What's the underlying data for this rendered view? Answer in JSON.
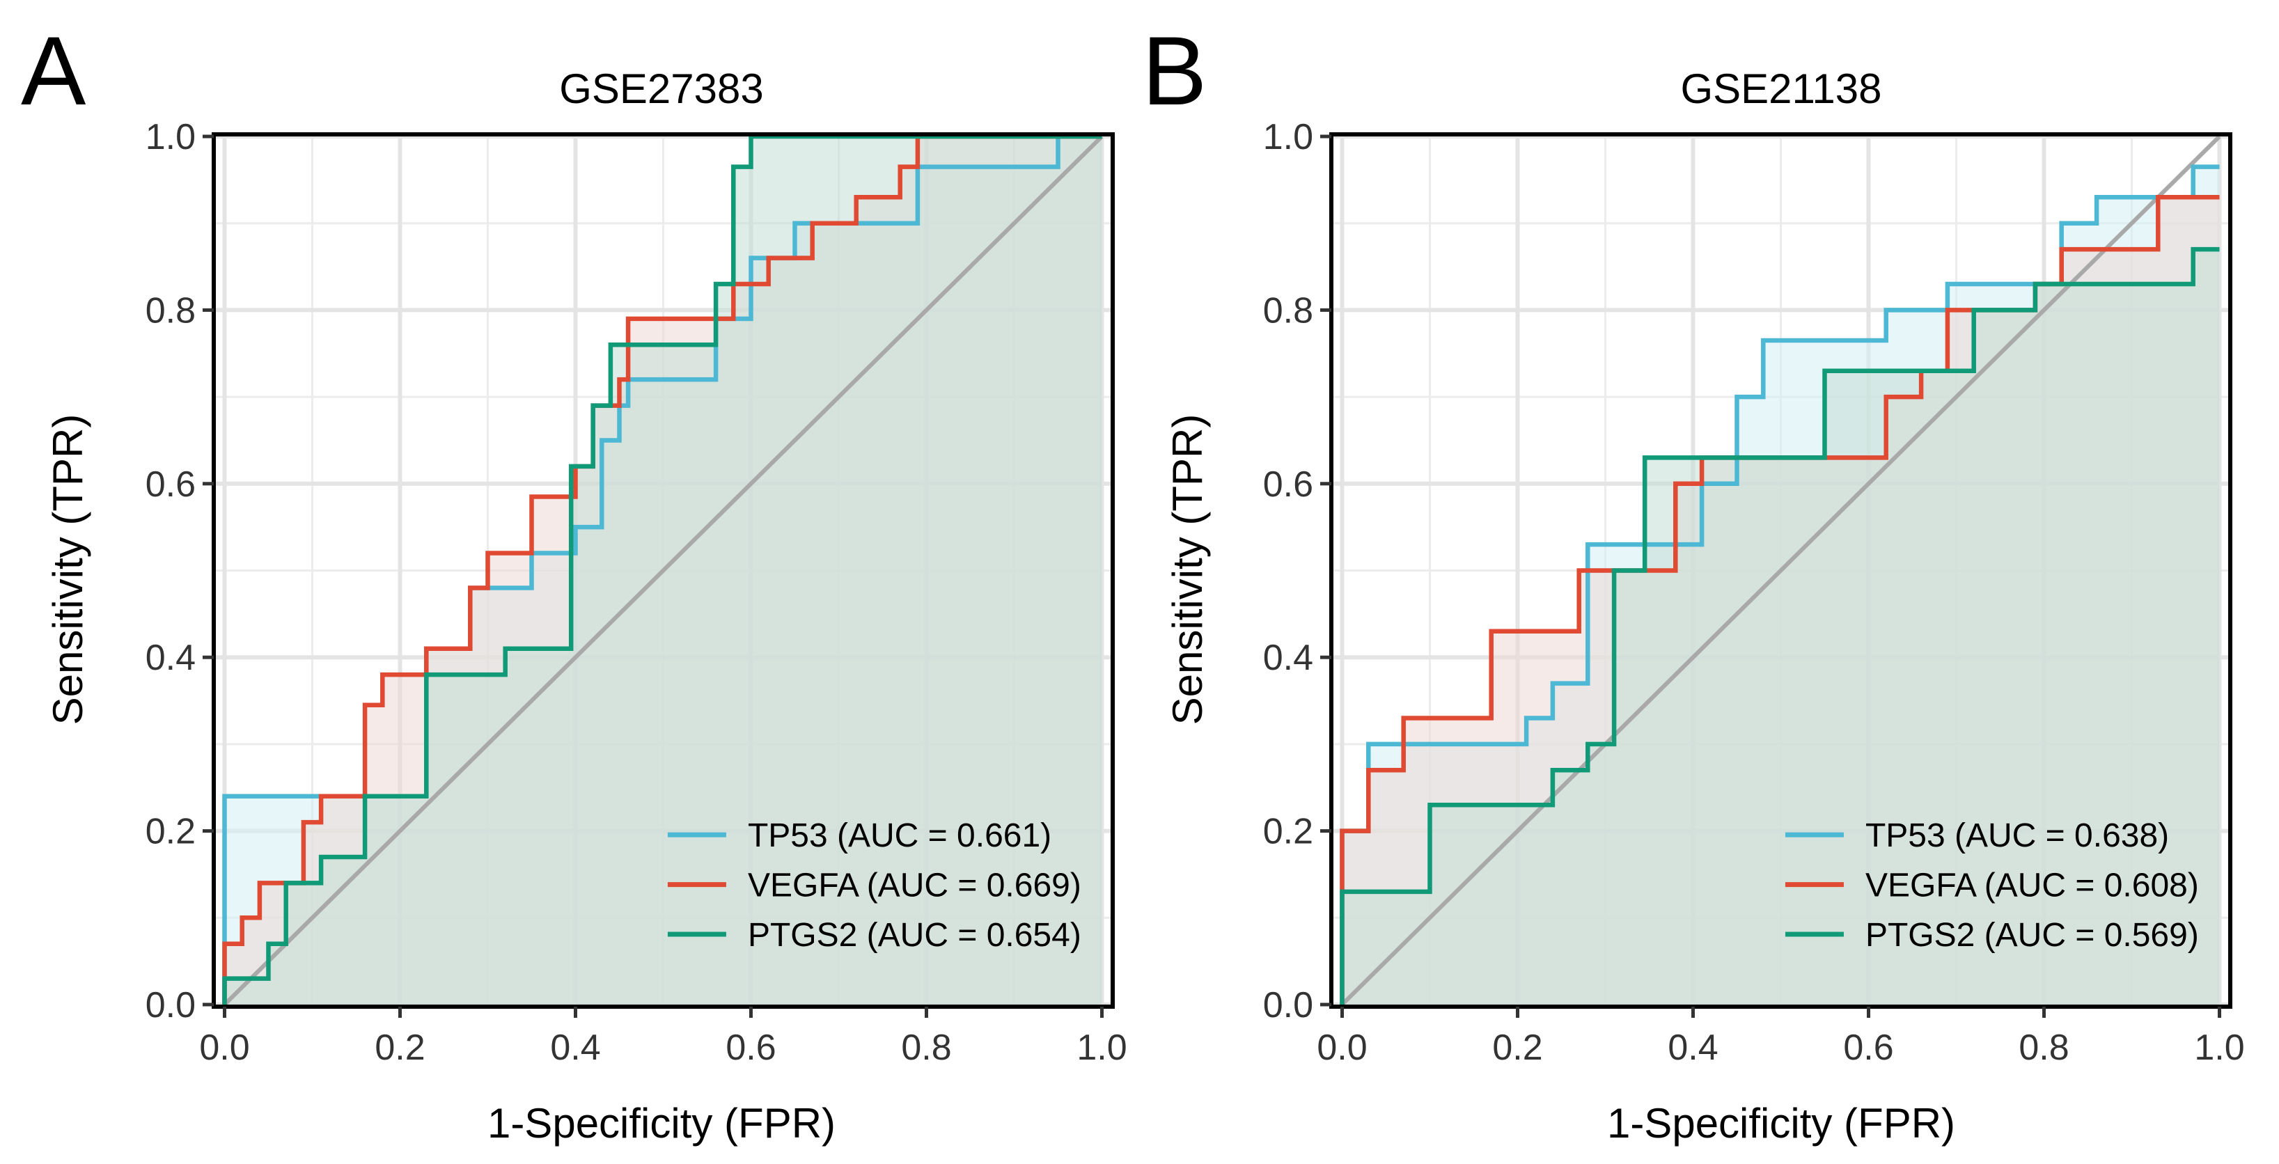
{
  "chart_data": [
    {
      "panel_label": "A",
      "type": "line",
      "title": "GSE27383",
      "xlabel": "1-Specificity (FPR)",
      "ylabel": "Sensitivity (TPR)",
      "xlim": [
        0,
        1
      ],
      "ylim": [
        0,
        1
      ],
      "ticks": [
        0.0,
        0.2,
        0.4,
        0.6,
        0.8,
        1.0
      ],
      "tick_labels": [
        "0.0",
        "0.2",
        "0.4",
        "0.6",
        "0.8",
        "1.0"
      ],
      "grid": true,
      "legend_position": "bottom-right",
      "diagonal": true,
      "series": [
        {
          "name": "TP53",
          "legend_label": "TP53 (AUC = 0.661)",
          "color": "#4db8d4",
          "fill": "#d3eef2",
          "fpr": [
            0,
            0,
            0.23,
            0.23,
            0.28,
            0.28,
            0.35,
            0.35,
            0.4,
            0.4,
            0.43,
            0.43,
            0.45,
            0.45,
            0.46,
            0.46,
            0.56,
            0.56,
            0.6,
            0.6,
            0.65,
            0.65,
            0.79,
            0.79,
            0.95,
            0.95,
            1.0
          ],
          "tpr": [
            0,
            0.24,
            0.24,
            0.41,
            0.41,
            0.48,
            0.48,
            0.52,
            0.52,
            0.55,
            0.55,
            0.65,
            0.65,
            0.69,
            0.69,
            0.72,
            0.72,
            0.79,
            0.79,
            0.86,
            0.86,
            0.9,
            0.9,
            0.965,
            0.965,
            1.0,
            1.0
          ]
        },
        {
          "name": "VEGFA",
          "legend_label": "VEGFA (AUC = 0.669)",
          "color": "#e04a33",
          "fill": "#ecd9d6",
          "fpr": [
            0,
            0,
            0.02,
            0.02,
            0.04,
            0.04,
            0.09,
            0.09,
            0.11,
            0.11,
            0.16,
            0.16,
            0.18,
            0.18,
            0.23,
            0.23,
            0.28,
            0.28,
            0.3,
            0.3,
            0.35,
            0.35,
            0.4,
            0.4,
            0.42,
            0.42,
            0.45,
            0.45,
            0.46,
            0.46,
            0.58,
            0.58,
            0.62,
            0.62,
            0.67,
            0.67,
            0.72,
            0.72,
            0.77,
            0.77,
            0.79,
            0.79,
            1.0
          ],
          "tpr": [
            0,
            0.07,
            0.07,
            0.1,
            0.1,
            0.14,
            0.14,
            0.21,
            0.21,
            0.24,
            0.24,
            0.345,
            0.345,
            0.38,
            0.38,
            0.41,
            0.41,
            0.48,
            0.48,
            0.52,
            0.52,
            0.585,
            0.585,
            0.62,
            0.62,
            0.69,
            0.69,
            0.72,
            0.72,
            0.79,
            0.79,
            0.83,
            0.83,
            0.86,
            0.86,
            0.9,
            0.9,
            0.93,
            0.93,
            0.965,
            0.965,
            1.0,
            1.0
          ]
        },
        {
          "name": "PTGS2",
          "legend_label": "PTGS2 (AUC = 0.654)",
          "color": "#119a78",
          "fill": "#c5dfd6",
          "fpr": [
            0,
            0,
            0.05,
            0.05,
            0.07,
            0.07,
            0.11,
            0.11,
            0.16,
            0.16,
            0.23,
            0.23,
            0.32,
            0.32,
            0.395,
            0.395,
            0.42,
            0.42,
            0.44,
            0.44,
            0.56,
            0.56,
            0.58,
            0.58,
            0.6,
            0.6,
            1.0
          ],
          "tpr": [
            0,
            0.03,
            0.03,
            0.07,
            0.07,
            0.14,
            0.14,
            0.17,
            0.17,
            0.24,
            0.24,
            0.38,
            0.38,
            0.41,
            0.41,
            0.62,
            0.62,
            0.69,
            0.69,
            0.76,
            0.76,
            0.83,
            0.83,
            0.965,
            0.965,
            1.0,
            1.0
          ]
        }
      ]
    },
    {
      "panel_label": "B",
      "type": "line",
      "title": "GSE21138",
      "xlabel": "1-Specificity (FPR)",
      "ylabel": "Sensitivity (TPR)",
      "xlim": [
        0,
        1
      ],
      "ylim": [
        0,
        1
      ],
      "ticks": [
        0.0,
        0.2,
        0.4,
        0.6,
        0.8,
        1.0
      ],
      "tick_labels": [
        "0.0",
        "0.2",
        "0.4",
        "0.6",
        "0.8",
        "1.0"
      ],
      "grid": true,
      "legend_position": "bottom-right",
      "diagonal": true,
      "series": [
        {
          "name": "TP53",
          "legend_label": "TP53 (AUC = 0.638)",
          "color": "#4db8d4",
          "fill": "#d3eef2",
          "fpr": [
            0,
            0,
            0.03,
            0.03,
            0.21,
            0.21,
            0.24,
            0.24,
            0.28,
            0.28,
            0.41,
            0.41,
            0.45,
            0.45,
            0.48,
            0.48,
            0.62,
            0.62,
            0.69,
            0.69,
            0.82,
            0.82,
            0.86,
            0.86,
            0.97,
            0.97,
            1.0
          ],
          "tpr": [
            0,
            0.2,
            0.2,
            0.3,
            0.3,
            0.33,
            0.33,
            0.37,
            0.37,
            0.53,
            0.53,
            0.6,
            0.6,
            0.7,
            0.7,
            0.765,
            0.765,
            0.8,
            0.8,
            0.83,
            0.83,
            0.9,
            0.9,
            0.93,
            0.93,
            0.965,
            0.965
          ]
        },
        {
          "name": "VEGFA",
          "legend_label": "VEGFA (AUC = 0.608)",
          "color": "#e04a33",
          "fill": "#ecd9d6",
          "fpr": [
            0,
            0,
            0.03,
            0.03,
            0.07,
            0.07,
            0.17,
            0.17,
            0.27,
            0.27,
            0.38,
            0.38,
            0.41,
            0.41,
            0.62,
            0.62,
            0.66,
            0.66,
            0.69,
            0.69,
            0.79,
            0.79,
            0.82,
            0.82,
            0.93,
            0.93,
            1.0
          ],
          "tpr": [
            0,
            0.2,
            0.2,
            0.27,
            0.27,
            0.33,
            0.33,
            0.43,
            0.43,
            0.5,
            0.5,
            0.6,
            0.6,
            0.63,
            0.63,
            0.7,
            0.7,
            0.73,
            0.73,
            0.8,
            0.8,
            0.83,
            0.83,
            0.87,
            0.87,
            0.93,
            0.93
          ]
        },
        {
          "name": "PTGS2",
          "legend_label": "PTGS2 (AUC = 0.569)",
          "color": "#119a78",
          "fill": "#c5dfd6",
          "fpr": [
            0,
            0,
            0.1,
            0.1,
            0.24,
            0.24,
            0.28,
            0.28,
            0.31,
            0.31,
            0.345,
            0.345,
            0.55,
            0.55,
            0.72,
            0.72,
            0.79,
            0.79,
            0.97,
            0.97,
            1.0
          ],
          "tpr": [
            0,
            0.13,
            0.13,
            0.23,
            0.23,
            0.27,
            0.27,
            0.3,
            0.3,
            0.5,
            0.5,
            0.63,
            0.63,
            0.73,
            0.73,
            0.8,
            0.8,
            0.83,
            0.83,
            0.87,
            0.87
          ]
        }
      ]
    }
  ]
}
